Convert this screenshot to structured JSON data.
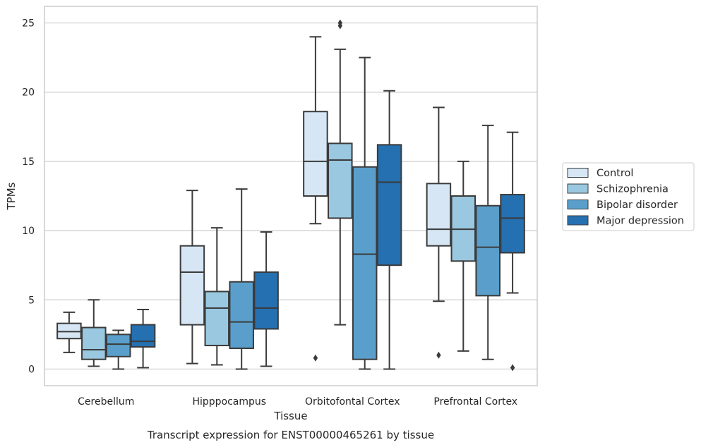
{
  "chart_data": {
    "type": "box",
    "title": "",
    "caption": "Transcript expression for ENST00000465261 by tissue",
    "xlabel": "Tissue",
    "ylabel": "TPMs",
    "ylim": [
      -1.2,
      26.2
    ],
    "yticks": [
      0,
      5,
      10,
      15,
      20,
      25
    ],
    "grid": "horizontal",
    "legend_position": "right",
    "categories": [
      "Cerebellum",
      "Hipppocampus",
      "Orbitofontal Cortex",
      "Prefrontal Cortex"
    ],
    "series": [
      {
        "name": "Control",
        "color": "#d6e6f4",
        "boxes": [
          {
            "whislo": 1.2,
            "q1": 2.2,
            "med": 2.7,
            "q3": 3.3,
            "whishi": 4.1,
            "fliers": []
          },
          {
            "whislo": 0.4,
            "q1": 3.2,
            "med": 7.0,
            "q3": 8.9,
            "whishi": 12.9,
            "fliers": []
          },
          {
            "whislo": 10.5,
            "q1": 12.5,
            "med": 15.0,
            "q3": 18.6,
            "whishi": 24.0,
            "fliers": [
              0.8
            ]
          },
          {
            "whislo": 4.9,
            "q1": 8.9,
            "med": 10.1,
            "q3": 13.4,
            "whishi": 18.9,
            "fliers": [
              1.0
            ]
          }
        ]
      },
      {
        "name": "Schizophrenia",
        "color": "#9ac8e0",
        "boxes": [
          {
            "whislo": 0.2,
            "q1": 0.7,
            "med": 1.4,
            "q3": 3.0,
            "whishi": 5.0,
            "fliers": []
          },
          {
            "whislo": 0.3,
            "q1": 1.7,
            "med": 4.4,
            "q3": 5.6,
            "whishi": 10.2,
            "fliers": []
          },
          {
            "whislo": 3.2,
            "q1": 10.9,
            "med": 15.1,
            "q3": 16.3,
            "whishi": 23.1,
            "fliers": [
              24.8,
              25.0
            ]
          },
          {
            "whislo": 1.3,
            "q1": 7.8,
            "med": 10.1,
            "q3": 12.5,
            "whishi": 15.0,
            "fliers": []
          }
        ]
      },
      {
        "name": "Bipolar disorder",
        "color": "#5a9fcb",
        "boxes": [
          {
            "whislo": 0.0,
            "q1": 0.9,
            "med": 1.8,
            "q3": 2.5,
            "whishi": 2.8,
            "fliers": []
          },
          {
            "whislo": 0.0,
            "q1": 1.5,
            "med": 3.4,
            "q3": 6.3,
            "whishi": 13.0,
            "fliers": []
          },
          {
            "whislo": 0.0,
            "q1": 0.7,
            "med": 8.3,
            "q3": 14.6,
            "whishi": 22.5,
            "fliers": []
          },
          {
            "whislo": 0.7,
            "q1": 5.3,
            "med": 8.8,
            "q3": 11.8,
            "whishi": 17.6,
            "fliers": []
          }
        ]
      },
      {
        "name": "Major depression",
        "color": "#2470b1",
        "boxes": [
          {
            "whislo": 0.1,
            "q1": 1.6,
            "med": 2.0,
            "q3": 3.2,
            "whishi": 4.3,
            "fliers": []
          },
          {
            "whislo": 0.2,
            "q1": 2.9,
            "med": 4.4,
            "q3": 7.0,
            "whishi": 9.9,
            "fliers": []
          },
          {
            "whislo": 0.0,
            "q1": 7.5,
            "med": 13.5,
            "q3": 16.2,
            "whishi": 20.1,
            "fliers": []
          },
          {
            "whislo": 5.5,
            "q1": 8.4,
            "med": 10.9,
            "q3": 12.6,
            "whishi": 17.1,
            "fliers": [
              0.1
            ]
          }
        ]
      }
    ]
  }
}
